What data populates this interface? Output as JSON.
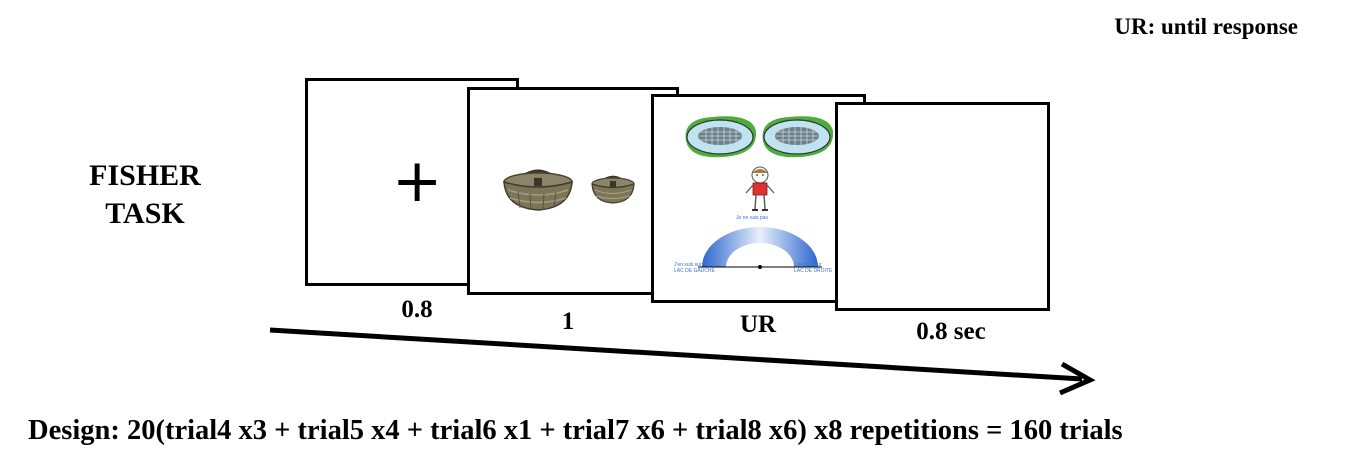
{
  "legend_note": "UR: until response",
  "task_title": [
    "FISHER",
    "TASK"
  ],
  "frames": [
    {
      "content": "+",
      "duration": "0.8"
    },
    {
      "content": "baskets",
      "duration": "1"
    },
    {
      "content": "response-screen",
      "duration": "UR"
    },
    {
      "content": "blank",
      "duration": "0.8 sec"
    }
  ],
  "response_screen": {
    "top_label": "Je ne sais pas",
    "left_label": [
      "J'en suis sur",
      "LAC DE GAUCHE"
    ],
    "right_label": [
      "J'en suis sur",
      "LAC DE DROITE"
    ]
  },
  "design_text": "Design: 20(trial4 x3 + trial5 x4 + trial6 x1 + trial7 x6 + trial8 x6) x8 repetitions =  160 trials",
  "colors": {
    "lake_water": "#bfe3ef",
    "grass": "#4cae3a",
    "scale_blue": "#3a73d6",
    "shirt": "#e03030"
  }
}
